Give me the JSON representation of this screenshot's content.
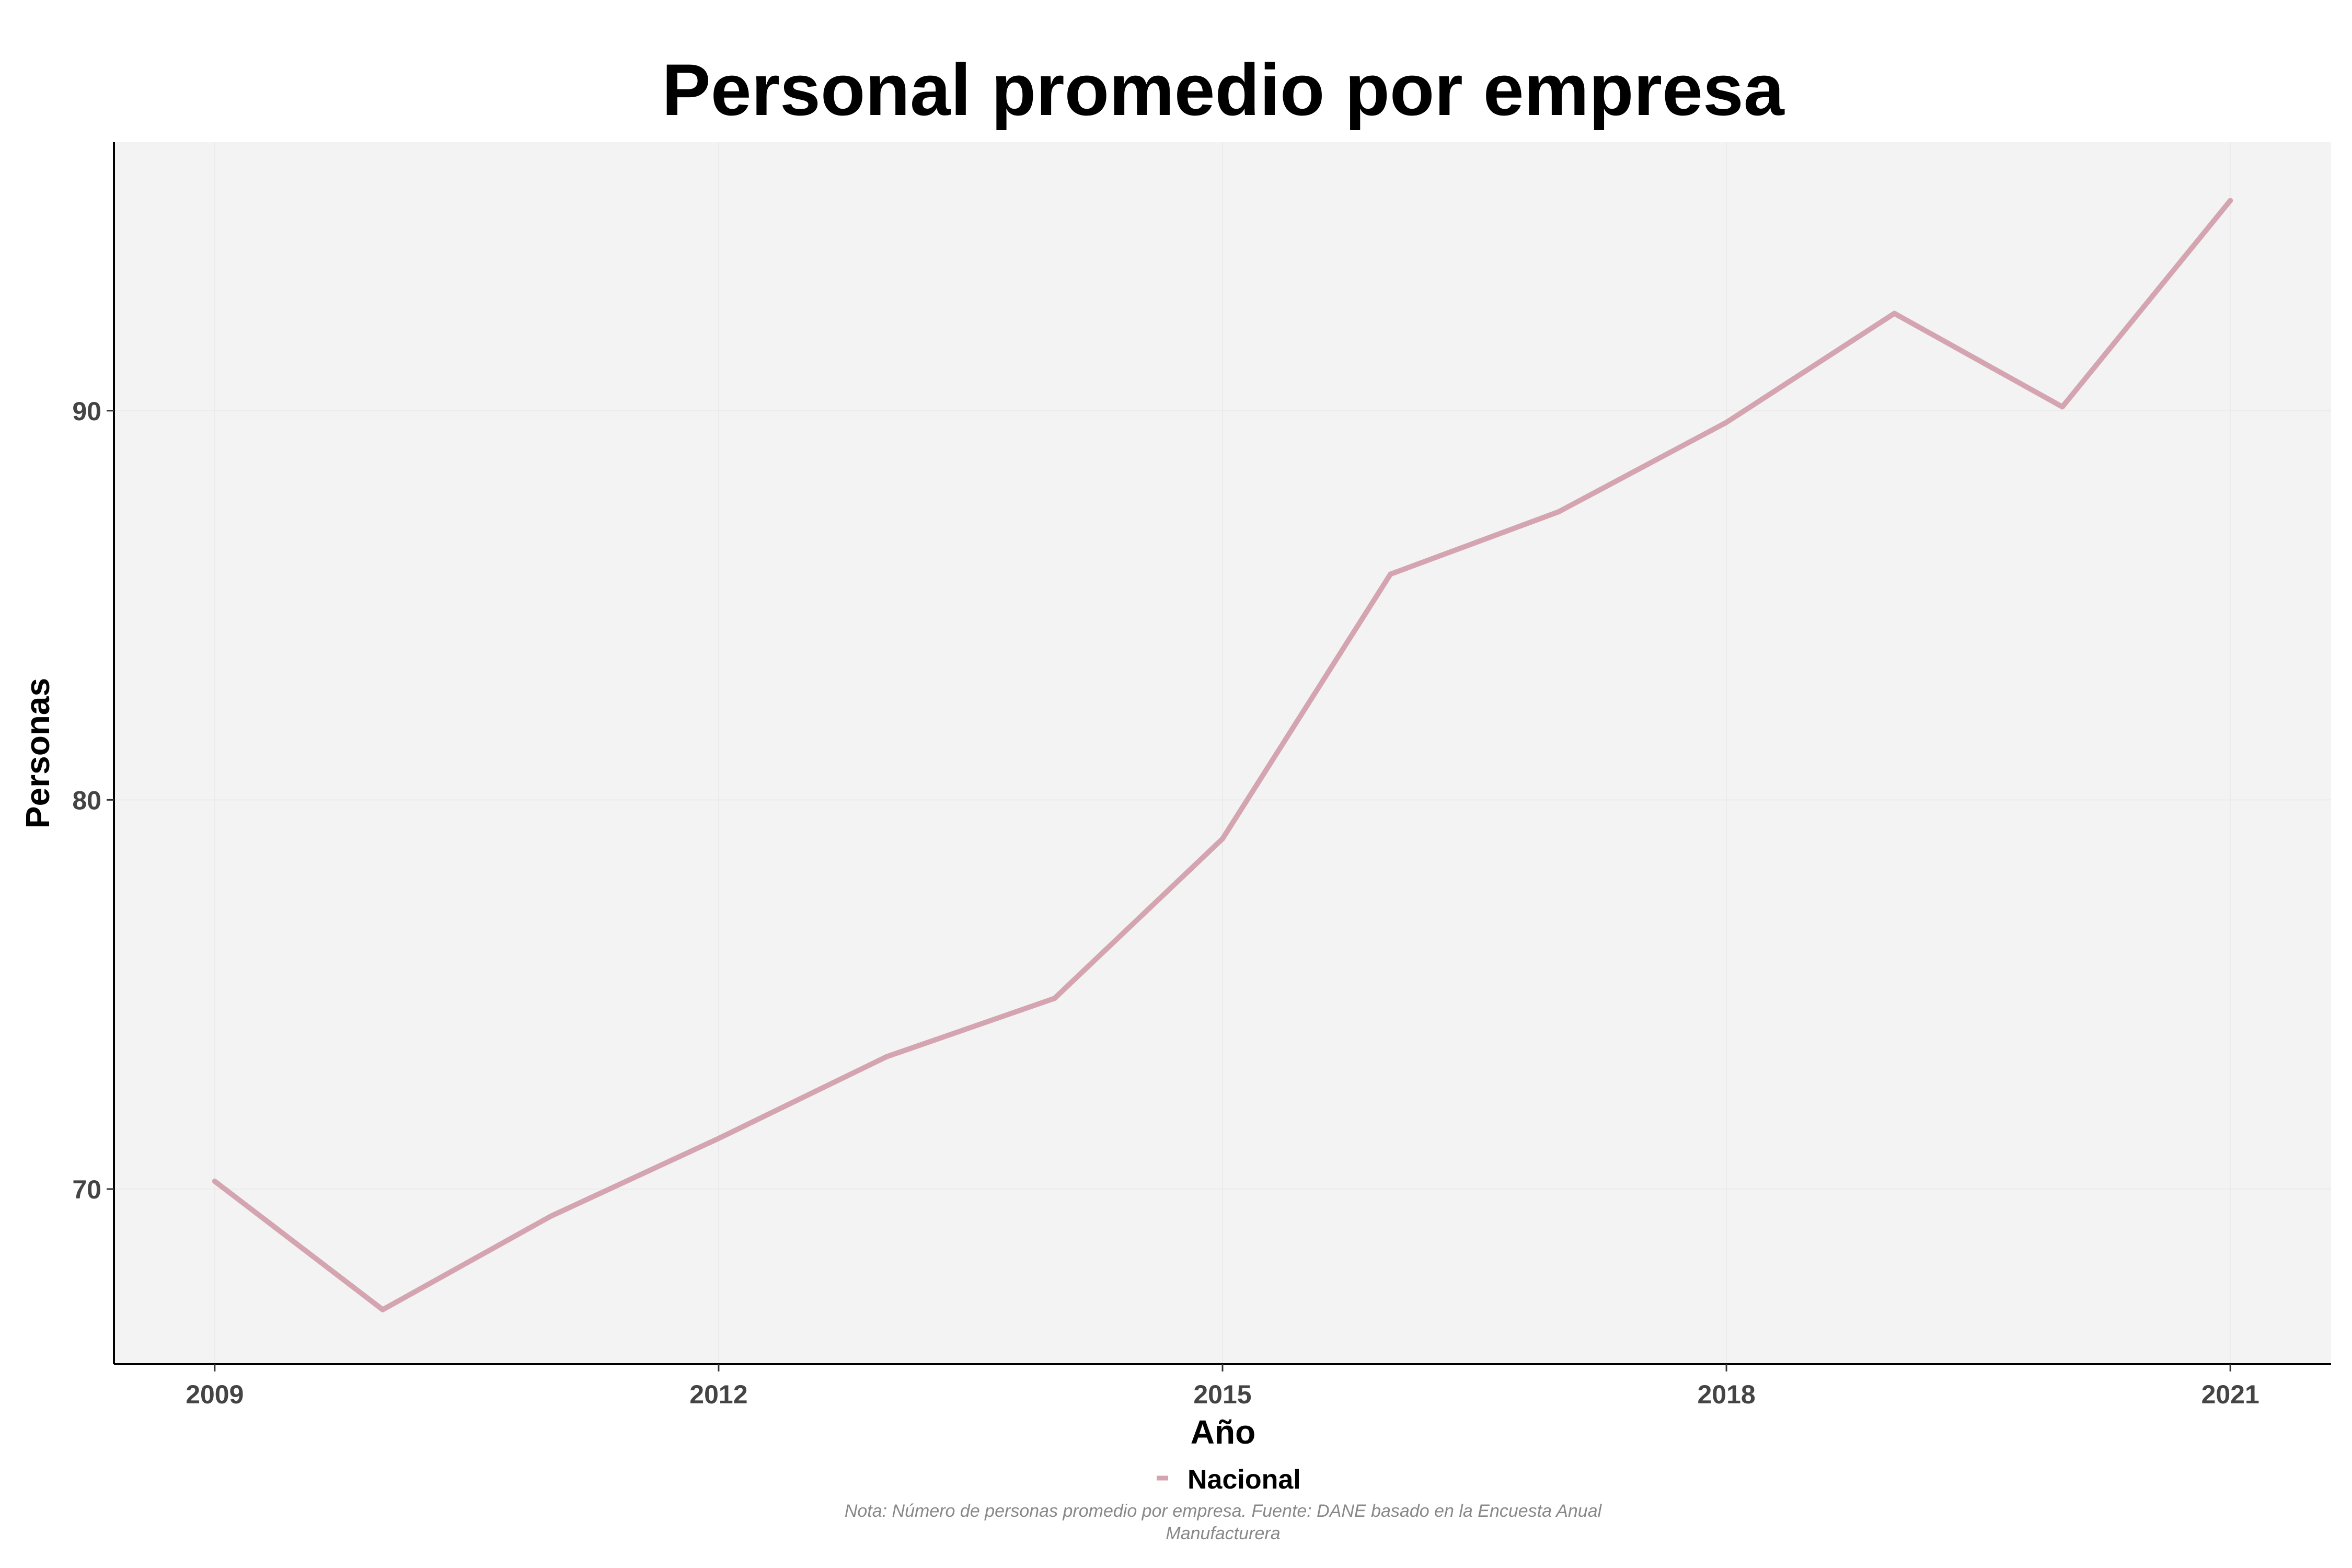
{
  "chart_data": {
    "type": "line",
    "title": "Personal promedio por empresa",
    "xlabel": "Año",
    "ylabel": "Personas",
    "x": [
      2009,
      2010,
      2011,
      2012,
      2013,
      2014,
      2015,
      2016,
      2017,
      2018,
      2019,
      2020,
      2021
    ],
    "series": [
      {
        "name": "Nacional",
        "color": "#d4a5b0",
        "values": [
          70.2,
          66.9,
          69.3,
          71.3,
          73.4,
          74.9,
          79.0,
          85.8,
          87.4,
          89.7,
          92.5,
          90.1,
          95.4
        ]
      }
    ],
    "xticks": [
      "2009",
      "2012",
      "2015",
      "2018",
      "2021"
    ],
    "yticks": [
      "70",
      "80",
      "90"
    ],
    "xlim": [
      2008.4,
      2021.6
    ],
    "ylim": [
      65.5,
      96.9
    ],
    "grid": true,
    "legend_position": "bottom",
    "panel_color": "#f3f3f3",
    "note_lines": [
      "Nota: Número de personas promedio por empresa. Fuente: DANE basado en la Encuesta Anual",
      "Manufacturera"
    ]
  }
}
